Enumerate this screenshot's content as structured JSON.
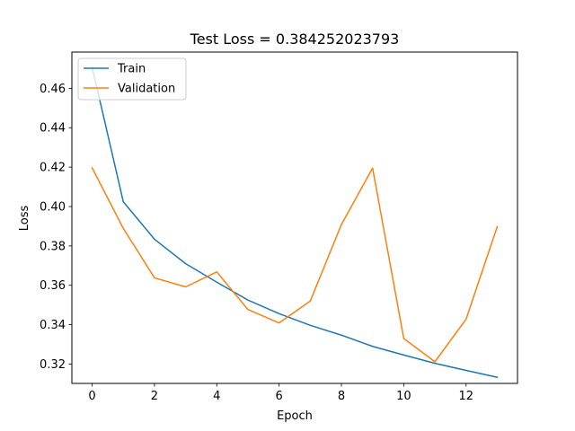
{
  "chart_data": {
    "type": "line",
    "title": "Test Loss = 0.384252023793",
    "xlabel": "Epoch",
    "ylabel": "Loss",
    "xlim": [
      -0.65,
      13.65
    ],
    "ylim": [
      0.3102,
      0.4784
    ],
    "xticks": [
      0,
      2,
      4,
      6,
      8,
      10,
      12
    ],
    "xtick_labels": [
      "0",
      "2",
      "4",
      "6",
      "8",
      "10",
      "12"
    ],
    "yticks": [
      0.32,
      0.34,
      0.36,
      0.38,
      0.4,
      0.42,
      0.44,
      0.46
    ],
    "ytick_labels": [
      "0.32",
      "0.34",
      "0.36",
      "0.38",
      "0.40",
      "0.42",
      "0.44",
      "0.46"
    ],
    "grid": false,
    "legend_position": "upper-left",
    "x": [
      0,
      1,
      2,
      3,
      4,
      5,
      6,
      7,
      8,
      9,
      10,
      11,
      12,
      13
    ],
    "series": [
      {
        "name": "Train",
        "color": "#1f77b4",
        "values": [
          0.4708,
          0.4024,
          0.3834,
          0.371,
          0.3616,
          0.3525,
          0.3456,
          0.3397,
          0.3347,
          0.329,
          0.3246,
          0.3204,
          0.3168,
          0.3133
        ]
      },
      {
        "name": "Validation",
        "color": "#ff7f0e",
        "values": [
          0.4196,
          0.3889,
          0.3638,
          0.3592,
          0.3668,
          0.3477,
          0.3409,
          0.352,
          0.3909,
          0.4195,
          0.333,
          0.3212,
          0.3428,
          0.3898
        ]
      }
    ]
  }
}
